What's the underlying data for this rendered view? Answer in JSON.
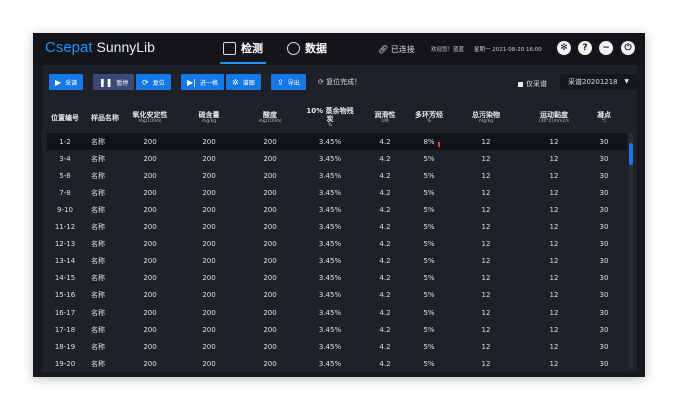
{
  "header": {
    "brand": "Csepat",
    "product": "SunnyLib",
    "tabs": [
      {
        "label": "检测",
        "icon": "chart-icon",
        "active": true
      },
      {
        "label": "数据",
        "icon": "hexagon-icon",
        "active": false
      }
    ],
    "connection": "已连接",
    "greeting": "欢迎您！蓝蓝",
    "datetime": "星期一 2021-08-20 16:00",
    "icons": [
      "gear-icon",
      "help-icon",
      "minimize-icon",
      "power-icon"
    ]
  },
  "toolbar": {
    "buttons": [
      {
        "label": "采谱",
        "glyph": "▶"
      },
      {
        "label": "暂停",
        "glyph": "❚❚"
      },
      {
        "label": "复位",
        "glyph": "⟳"
      },
      {
        "label": "进一格",
        "glyph": "▶|"
      },
      {
        "label": "谱图",
        "glyph": "✲"
      },
      {
        "label": "导出",
        "glyph": "⇪"
      }
    ],
    "status": "复位完成！",
    "only_label": "仅采谱",
    "select_value": "采谱20201218"
  },
  "table": {
    "columns": [
      {
        "name": "位置编号",
        "unit": ""
      },
      {
        "name": "样品名称",
        "unit": ""
      },
      {
        "name": "氧化安定性",
        "unit": "mg/100ml"
      },
      {
        "name": "硫含量",
        "unit": "mg/kg"
      },
      {
        "name": "酸度",
        "unit": "mg/100ml"
      },
      {
        "name": "10% 蒸余物残炭",
        "unit": "%"
      },
      {
        "name": "润滑性",
        "unit": "UM"
      },
      {
        "name": "多环芳烃",
        "unit": "%"
      },
      {
        "name": "总污染物",
        "unit": "mg/kg"
      },
      {
        "name": "运动黏度",
        "unit": "(20°C)mm2/s"
      },
      {
        "name": "凝点",
        "unit": "℃"
      }
    ],
    "rows": [
      [
        "1-2",
        "名称",
        "200",
        "200",
        "200",
        "3.45%",
        "4.2",
        "8%",
        "12",
        "12",
        "30"
      ],
      [
        "3-4",
        "名称",
        "200",
        "200",
        "200",
        "3.45%",
        "4.2",
        "5%",
        "12",
        "12",
        "30"
      ],
      [
        "5-6",
        "名称",
        "200",
        "200",
        "200",
        "3.45%",
        "4.2",
        "5%",
        "12",
        "12",
        "30"
      ],
      [
        "7-8",
        "名称",
        "200",
        "200",
        "200",
        "3.45%",
        "4.2",
        "5%",
        "12",
        "12",
        "30"
      ],
      [
        "9-10",
        "名称",
        "200",
        "200",
        "200",
        "3.45%",
        "4.2",
        "5%",
        "12",
        "12",
        "30"
      ],
      [
        "11-12",
        "名称",
        "200",
        "200",
        "200",
        "3.45%",
        "4.2",
        "5%",
        "12",
        "12",
        "30"
      ],
      [
        "12-13",
        "名称",
        "200",
        "200",
        "200",
        "3.45%",
        "4.2",
        "5%",
        "12",
        "12",
        "30"
      ],
      [
        "13-14",
        "名称",
        "200",
        "200",
        "200",
        "3.45%",
        "4.2",
        "5%",
        "12",
        "12",
        "30"
      ],
      [
        "14-15",
        "名称",
        "200",
        "200",
        "200",
        "3.45%",
        "4.2",
        "5%",
        "12",
        "12",
        "30"
      ],
      [
        "15-16",
        "名称",
        "200",
        "200",
        "200",
        "3.45%",
        "4.2",
        "5%",
        "12",
        "12",
        "30"
      ],
      [
        "16-17",
        "名称",
        "200",
        "200",
        "200",
        "3.45%",
        "4.2",
        "5%",
        "12",
        "12",
        "30"
      ],
      [
        "17-18",
        "名称",
        "200",
        "200",
        "200",
        "3.45%",
        "4.2",
        "5%",
        "12",
        "12",
        "30"
      ],
      [
        "18-19",
        "名称",
        "200",
        "200",
        "200",
        "3.45%",
        "4.2",
        "5%",
        "12",
        "12",
        "30"
      ],
      [
        "19-20",
        "名称",
        "200",
        "200",
        "200",
        "3.45%",
        "4.2",
        "5%",
        "12",
        "12",
        "30"
      ]
    ],
    "selected_row": 0,
    "flagged_cell": {
      "row": 0,
      "col": 7
    }
  },
  "colors": {
    "accent": "#1677e6",
    "background": "#17181d",
    "panel": "#1f2129",
    "flag": "#e53935"
  }
}
